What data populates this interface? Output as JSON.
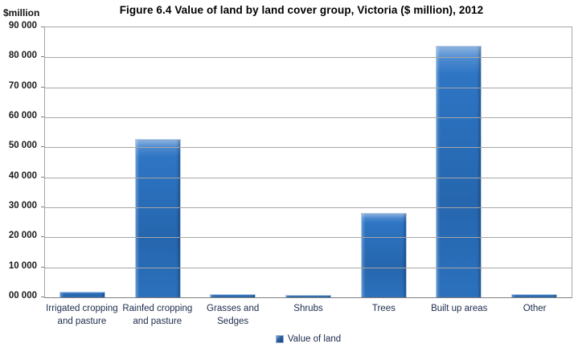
{
  "chart_data": {
    "type": "bar",
    "title": "Figure 6.4 Value of land by land cover group, Victoria ($ million), 2012",
    "ylabel": "$million",
    "xlabel": "",
    "series_name": "Value of land",
    "categories": [
      "Irrigated cropping and pasture",
      "Rainfed cropping and pasture",
      "Grasses and Sedges",
      "Shrubs",
      "Trees",
      "Built up areas",
      "Other"
    ],
    "values": [
      2000,
      52700,
      1200,
      800,
      28000,
      83800,
      1100
    ],
    "ylim": [
      0,
      90000
    ],
    "ytick_interval": 10000,
    "ytick_labels_top_to_bottom": [
      "90 000",
      "80 000",
      "70 000",
      "60 000",
      "50 000",
      "40 000",
      "30 000",
      "20 000",
      "10 000",
      "00 000"
    ],
    "grid": true,
    "legend_position": "bottom",
    "colors": {
      "bar_fill": "#2e74c0",
      "bar_highlight": "#8db4e2",
      "bar_border": "#b1c9e8",
      "gridline": "#a6a6a6",
      "axis_line": "#7f7f7f",
      "text": "#1b2a4a",
      "title_text": "#000000"
    }
  }
}
